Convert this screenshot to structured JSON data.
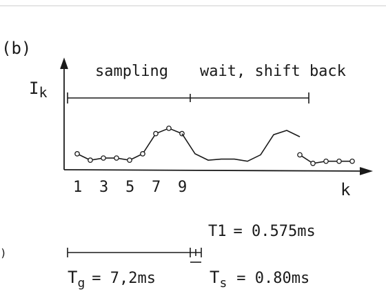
{
  "panel_label": "(b)",
  "left_edge_fragment": ")",
  "phases": {
    "sampling": "sampling",
    "wait": "wait, shift back"
  },
  "timings": {
    "t1_sym": "T",
    "t1_sub": "1",
    "t1_eq": "= 0.575ms",
    "tg_sym": "T",
    "tg_sub": "g",
    "tg_eq": "= 7,2ms",
    "ts_sym": "T",
    "ts_sub": "s",
    "ts_eq": "= 0.80ms"
  },
  "colors": {
    "ink": "#1a1a1a",
    "marker_fill": "#ffffff",
    "rule": "#cfcfcf"
  },
  "chart_data": {
    "type": "line",
    "title": "",
    "ylabel": "I",
    "ylabel_sub": "k",
    "xlabel": "k",
    "xlim": [
      0,
      22
    ],
    "ylim": [
      0,
      10
    ],
    "x_ticks": [
      1,
      3,
      5,
      7,
      9
    ],
    "x_tick_labels": [
      "1",
      "3",
      "5",
      "7",
      "9"
    ],
    "grid": false,
    "legend": "none",
    "series": [
      {
        "marker": "circle",
        "x": [
          1,
          2,
          3,
          4,
          5,
          6,
          7,
          8,
          9
        ],
        "y": [
          3.0,
          1.8,
          2.2,
          2.2,
          1.8,
          3.0,
          6.8,
          7.8,
          6.8
        ]
      },
      {
        "marker": "none",
        "x": [
          9,
          10,
          11,
          12,
          13,
          14,
          15,
          16,
          17,
          18
        ],
        "y": [
          6.8,
          3.0,
          1.8,
          2.0,
          2.0,
          1.6,
          2.8,
          6.6,
          7.4,
          6.2
        ]
      },
      {
        "marker": "circle",
        "x": [
          18,
          19,
          20,
          21,
          22
        ],
        "y": [
          2.8,
          1.2,
          1.6,
          1.6,
          1.6
        ]
      }
    ]
  }
}
